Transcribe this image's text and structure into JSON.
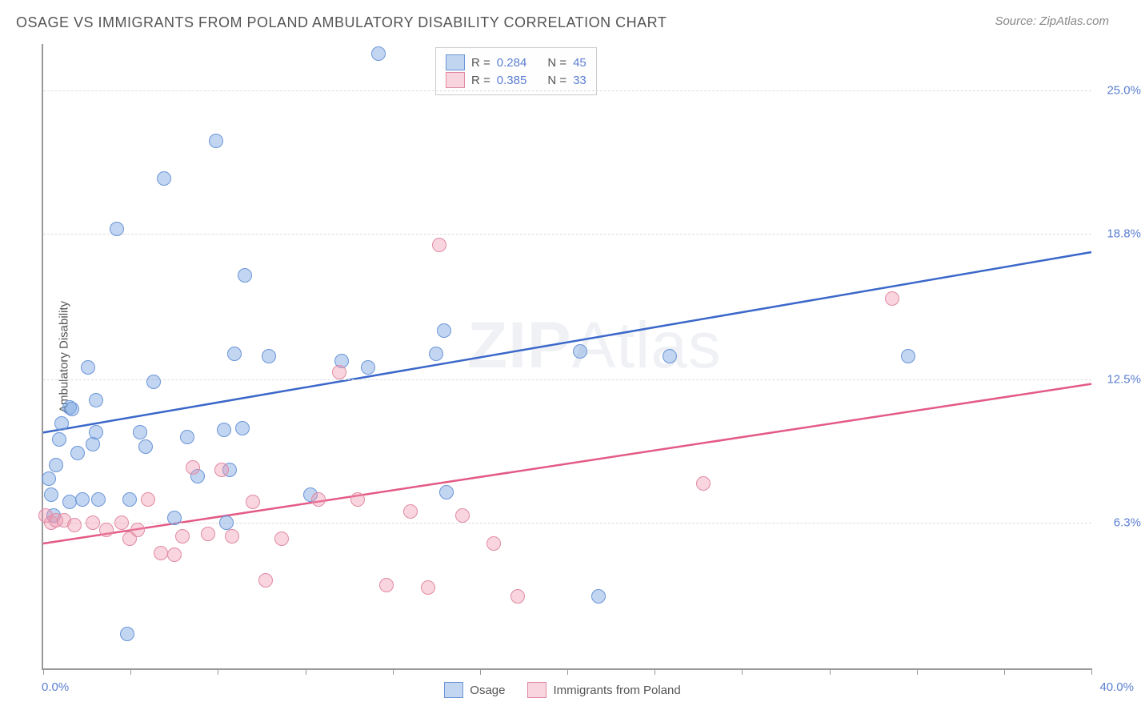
{
  "chart": {
    "type": "scatter",
    "title": "OSAGE VS IMMIGRANTS FROM POLAND AMBULATORY DISABILITY CORRELATION CHART",
    "source": "Source: ZipAtlas.com",
    "y_axis_label": "Ambulatory Disability",
    "background_color": "#ffffff",
    "grid_color": "#dddddd",
    "axis_color": "#999999",
    "title_color": "#555555",
    "title_fontsize": 18,
    "label_fontsize": 15,
    "x_axis": {
      "min_label": "0.0%",
      "max_label": "40.0%",
      "min": 0,
      "max": 40,
      "color": "#5b7fd1",
      "tick_positions": [
        0,
        3.33,
        6.67,
        10,
        13.33,
        16.67,
        20,
        23.33,
        26.67,
        30,
        33.33,
        36.67,
        40
      ]
    },
    "y_axis": {
      "min": 0,
      "max": 27,
      "ticks": [
        {
          "value": 6.3,
          "label": "6.3%"
        },
        {
          "value": 12.5,
          "label": "12.5%"
        },
        {
          "value": 18.8,
          "label": "18.8%"
        },
        {
          "value": 25.0,
          "label": "25.0%"
        }
      ],
      "tick_color": "#5b7fd1"
    },
    "watermark": {
      "text_a": "ZIP",
      "text_b": "Atlas",
      "color": "rgba(120,140,170,0.12)",
      "fontsize": 82
    },
    "series": [
      {
        "name": "Osage",
        "r_value": "0.284",
        "n_value": "45",
        "fill_color": "rgba(120,165,225,0.45)",
        "stroke_color": "#6a95d8",
        "line_color": "#3a67c9",
        "line_width": 2.5,
        "trend": {
          "x1": 0,
          "y1": 10.2,
          "x2": 40,
          "y2": 18.0
        },
        "marker_radius": 8,
        "points": [
          {
            "x": 0.2,
            "y": 8.2
          },
          {
            "x": 0.3,
            "y": 7.5
          },
          {
            "x": 0.4,
            "y": 6.6
          },
          {
            "x": 0.5,
            "y": 8.8
          },
          {
            "x": 0.6,
            "y": 9.9
          },
          {
            "x": 0.7,
            "y": 10.6
          },
          {
            "x": 1.0,
            "y": 7.2
          },
          {
            "x": 1.0,
            "y": 11.3
          },
          {
            "x": 1.1,
            "y": 11.2
          },
          {
            "x": 1.3,
            "y": 9.3
          },
          {
            "x": 1.5,
            "y": 7.3
          },
          {
            "x": 1.7,
            "y": 13.0
          },
          {
            "x": 1.9,
            "y": 9.7
          },
          {
            "x": 2.0,
            "y": 10.2
          },
          {
            "x": 2.0,
            "y": 11.6
          },
          {
            "x": 2.1,
            "y": 7.3
          },
          {
            "x": 2.8,
            "y": 19.0
          },
          {
            "x": 3.2,
            "y": 1.5
          },
          {
            "x": 3.3,
            "y": 7.3
          },
          {
            "x": 3.7,
            "y": 10.2
          },
          {
            "x": 3.9,
            "y": 9.6
          },
          {
            "x": 4.2,
            "y": 12.4
          },
          {
            "x": 4.6,
            "y": 21.2
          },
          {
            "x": 5.0,
            "y": 6.5
          },
          {
            "x": 5.5,
            "y": 10.0
          },
          {
            "x": 5.9,
            "y": 8.3
          },
          {
            "x": 6.6,
            "y": 22.8
          },
          {
            "x": 6.9,
            "y": 10.3
          },
          {
            "x": 7.0,
            "y": 6.3
          },
          {
            "x": 7.1,
            "y": 8.6
          },
          {
            "x": 7.3,
            "y": 13.6
          },
          {
            "x": 7.7,
            "y": 17.0
          },
          {
            "x": 8.6,
            "y": 13.5
          },
          {
            "x": 10.2,
            "y": 7.5
          },
          {
            "x": 11.4,
            "y": 13.3
          },
          {
            "x": 12.4,
            "y": 13.0
          },
          {
            "x": 12.8,
            "y": 26.6
          },
          {
            "x": 15.0,
            "y": 13.6
          },
          {
            "x": 15.3,
            "y": 14.6
          },
          {
            "x": 15.4,
            "y": 7.6
          },
          {
            "x": 20.5,
            "y": 13.7
          },
          {
            "x": 21.2,
            "y": 3.1
          },
          {
            "x": 23.9,
            "y": 13.5
          },
          {
            "x": 33.0,
            "y": 13.5
          },
          {
            "x": 7.6,
            "y": 10.4
          }
        ]
      },
      {
        "name": "Immigrants from Poland",
        "r_value": "0.385",
        "n_value": "33",
        "fill_color": "rgba(240,150,175,0.40)",
        "stroke_color": "#e08aa2",
        "line_color": "#e35a85",
        "line_width": 2.5,
        "trend": {
          "x1": 0,
          "y1": 5.4,
          "x2": 40,
          "y2": 12.3
        },
        "marker_radius": 8,
        "points": [
          {
            "x": 0.1,
            "y": 6.6
          },
          {
            "x": 0.3,
            "y": 6.3
          },
          {
            "x": 0.5,
            "y": 6.4
          },
          {
            "x": 0.8,
            "y": 6.4
          },
          {
            "x": 1.2,
            "y": 6.2
          },
          {
            "x": 1.9,
            "y": 6.3
          },
          {
            "x": 2.4,
            "y": 6.0
          },
          {
            "x": 3.0,
            "y": 6.3
          },
          {
            "x": 3.3,
            "y": 5.6
          },
          {
            "x": 3.6,
            "y": 6.0
          },
          {
            "x": 4.0,
            "y": 7.3
          },
          {
            "x": 4.5,
            "y": 5.0
          },
          {
            "x": 5.0,
            "y": 4.9
          },
          {
            "x": 5.3,
            "y": 5.7
          },
          {
            "x": 5.7,
            "y": 8.7
          },
          {
            "x": 6.3,
            "y": 5.8
          },
          {
            "x": 6.8,
            "y": 8.6
          },
          {
            "x": 7.2,
            "y": 5.7
          },
          {
            "x": 8.0,
            "y": 7.2
          },
          {
            "x": 8.5,
            "y": 3.8
          },
          {
            "x": 9.1,
            "y": 5.6
          },
          {
            "x": 10.5,
            "y": 7.3
          },
          {
            "x": 11.3,
            "y": 12.8
          },
          {
            "x": 12.0,
            "y": 7.3
          },
          {
            "x": 13.1,
            "y": 3.6
          },
          {
            "x": 14.0,
            "y": 6.8
          },
          {
            "x": 14.7,
            "y": 3.5
          },
          {
            "x": 15.1,
            "y": 18.3
          },
          {
            "x": 16.0,
            "y": 6.6
          },
          {
            "x": 17.2,
            "y": 5.4
          },
          {
            "x": 18.1,
            "y": 3.1
          },
          {
            "x": 25.2,
            "y": 8.0
          },
          {
            "x": 32.4,
            "y": 16.0
          }
        ]
      }
    ],
    "legend_stats": {
      "r_label": "R =",
      "n_label": "N ="
    },
    "bottom_legend": {
      "items": [
        "Osage",
        "Immigrants from Poland"
      ]
    }
  }
}
